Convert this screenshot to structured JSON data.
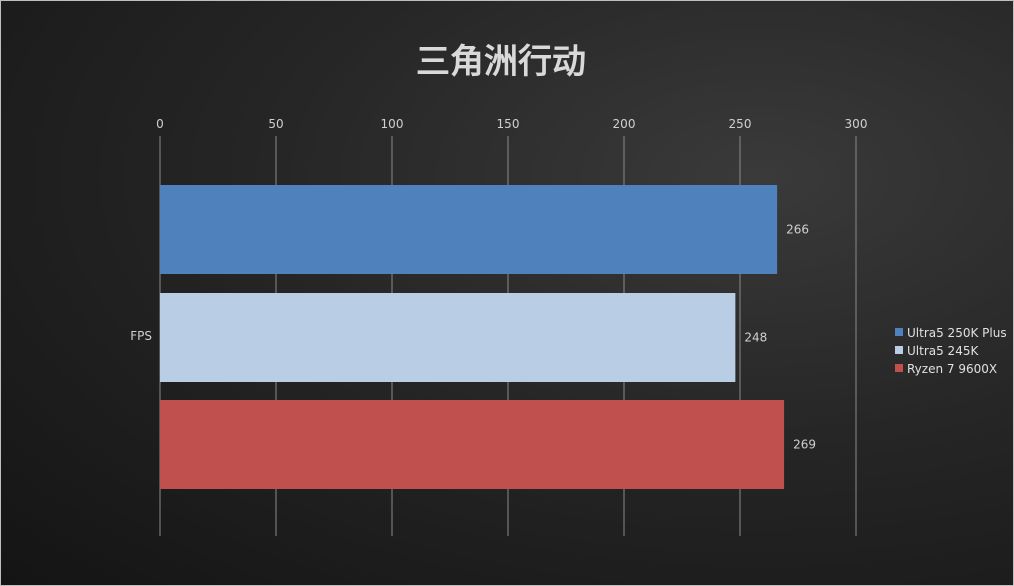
{
  "chart_data": {
    "type": "bar",
    "orientation": "horizontal",
    "title": "三角洲行动",
    "categories": [
      "FPS"
    ],
    "series": [
      {
        "name": "Ultra5 250K Plus",
        "values": [
          266
        ],
        "color": "#4f81bd"
      },
      {
        "name": "Ultra5 245K",
        "values": [
          248
        ],
        "color": "#b9cde5"
      },
      {
        "name": "Ryzen 7 9600X",
        "values": [
          269
        ],
        "color": "#c0504d"
      }
    ],
    "xlim": [
      0,
      300
    ],
    "xticks": [
      0,
      50,
      100,
      150,
      200,
      250,
      300
    ],
    "xaxis_position": "top",
    "grid": true,
    "legend": "right",
    "data_labels": true
  }
}
